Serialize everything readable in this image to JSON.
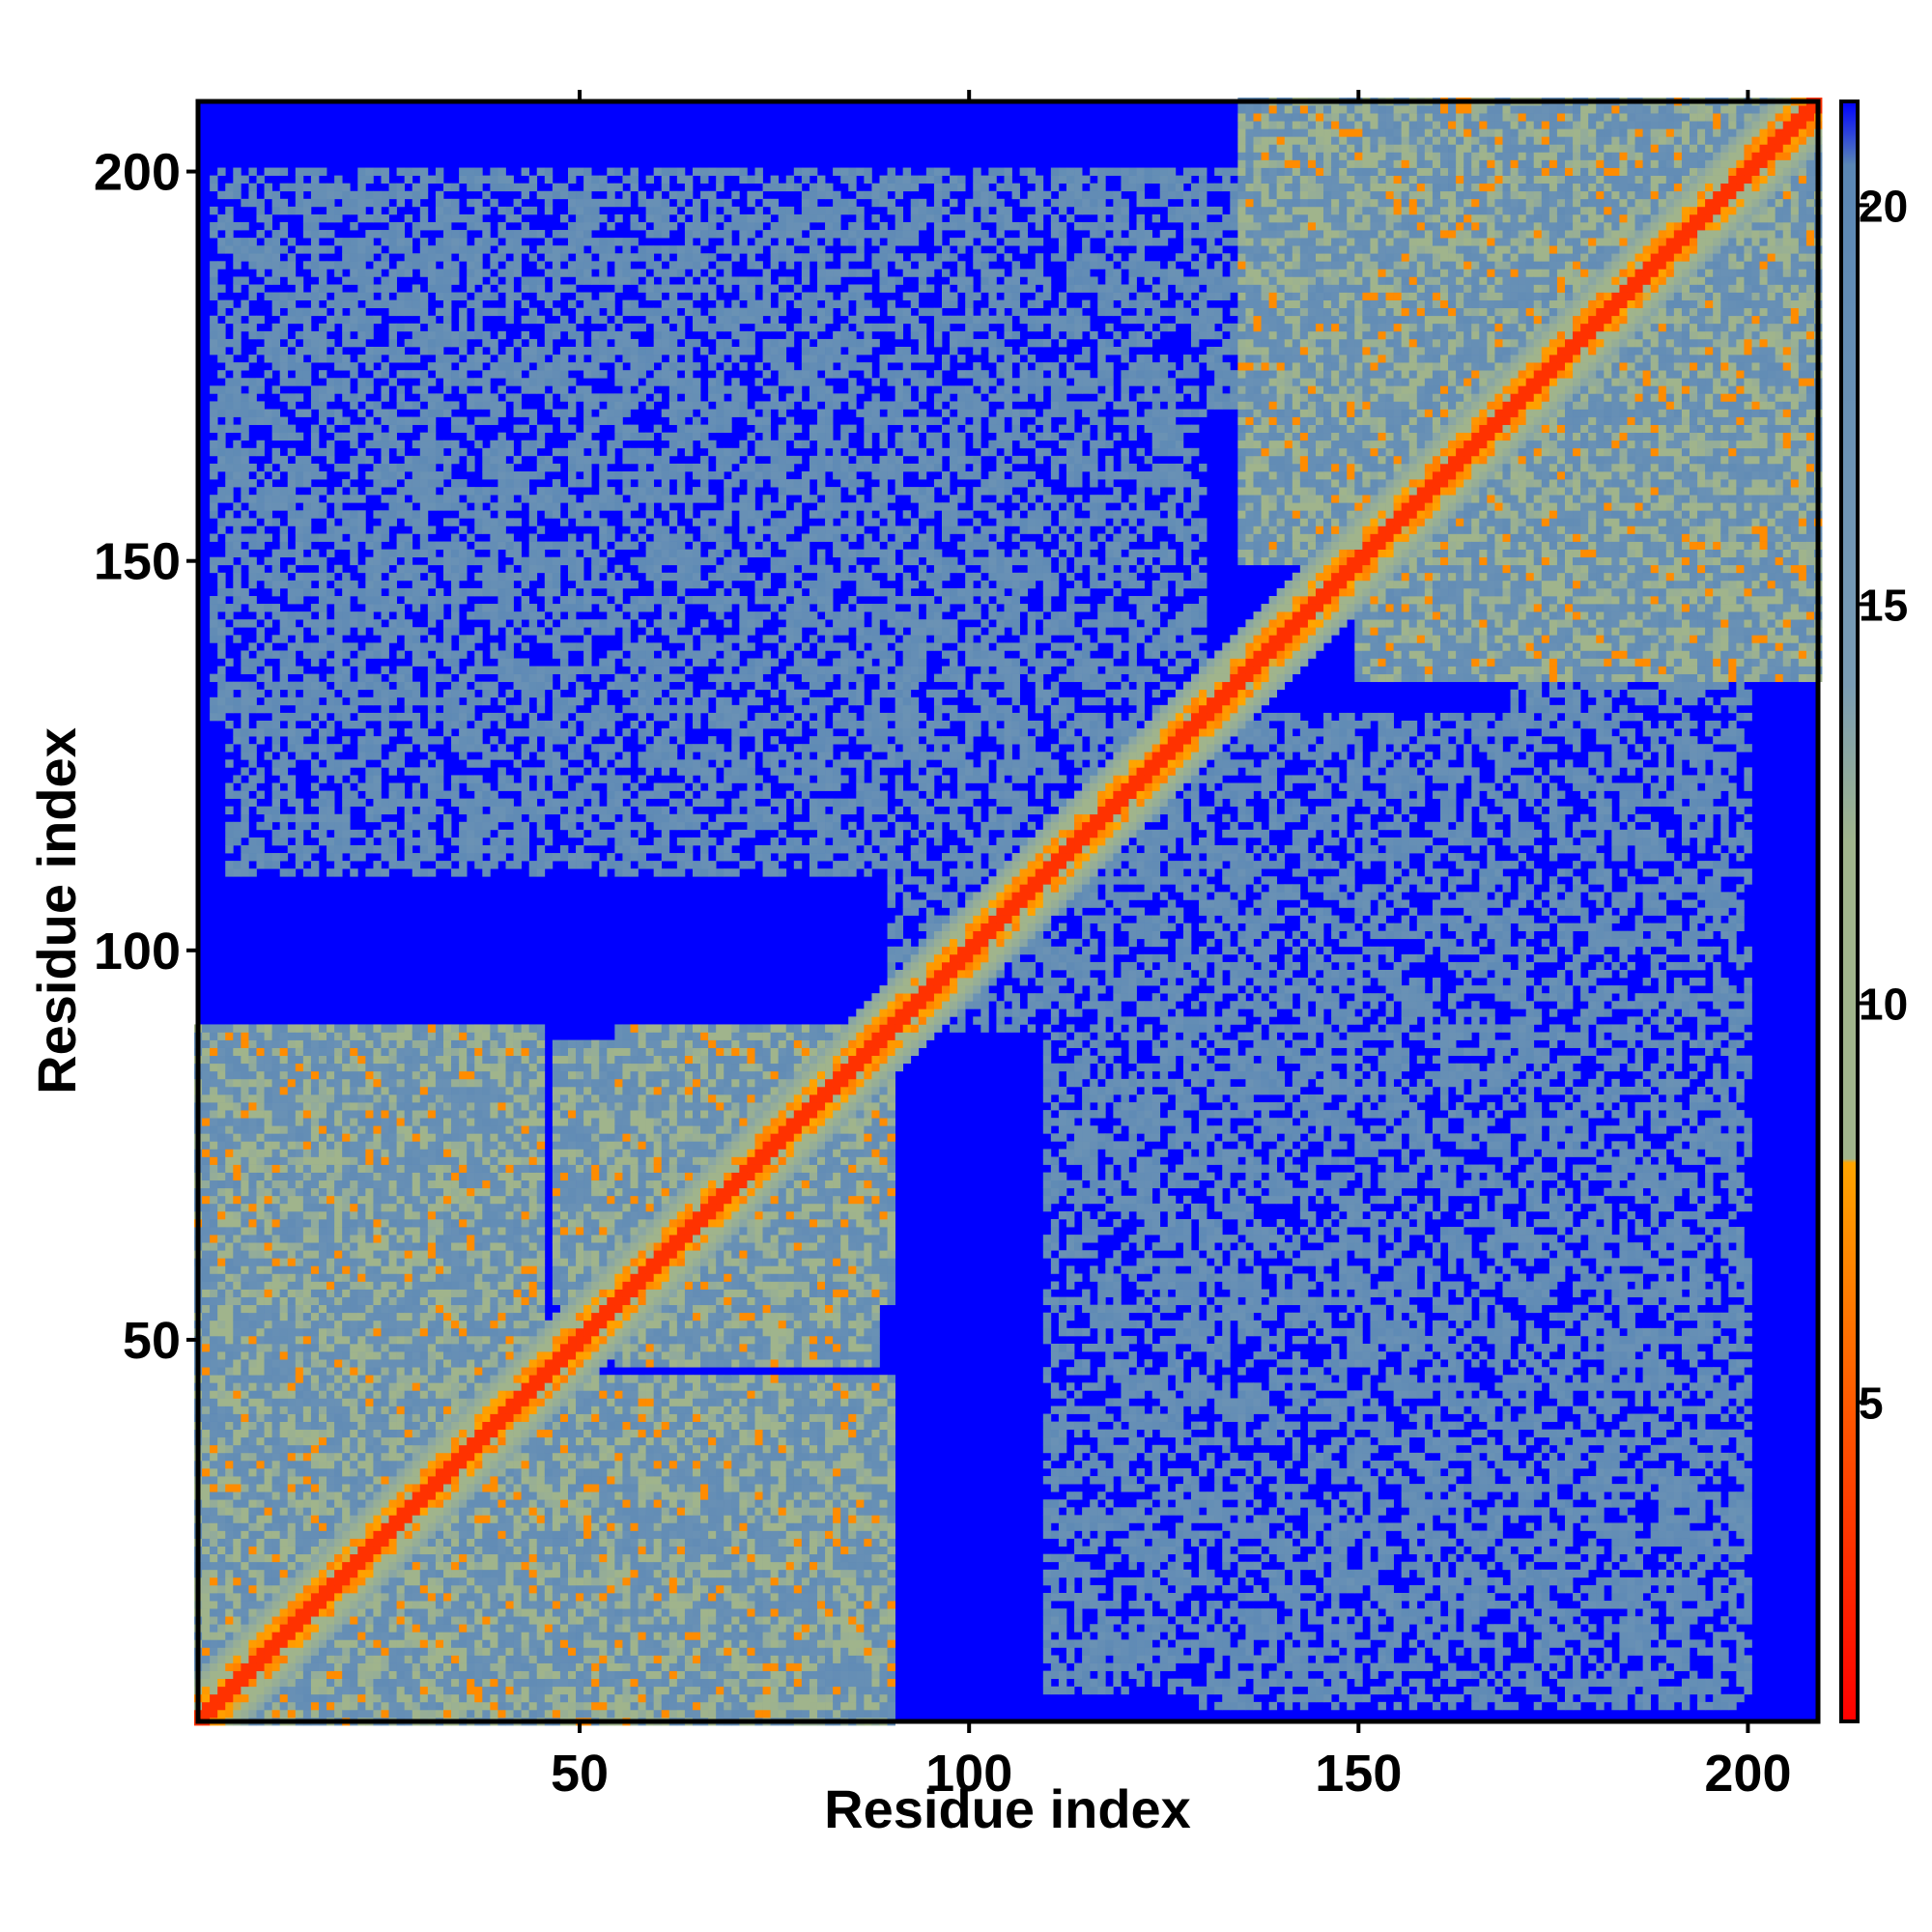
{
  "chart_data": {
    "type": "heatmap",
    "title": "",
    "xlabel": "Residue index",
    "ylabel": "Residue index",
    "xlim": [
      1,
      209
    ],
    "ylim": [
      1,
      209
    ],
    "x_ticks": [
      50,
      100,
      150,
      200
    ],
    "y_ticks": [
      50,
      100,
      150,
      200
    ],
    "colorbar": {
      "range": [
        1,
        21.3
      ],
      "ticks": [
        5,
        10,
        15,
        20
      ],
      "stops": [
        {
          "value": 1,
          "color": "#ff0000"
        },
        {
          "value": 5,
          "color": "#ff5a00"
        },
        {
          "value": 8,
          "color": "#ffa500"
        },
        {
          "value": 8.05,
          "color": "#a0b48c"
        },
        {
          "value": 12,
          "color": "#a0b48c"
        },
        {
          "value": 14,
          "color": "#7a9cb4"
        },
        {
          "value": 20.5,
          "color": "#5a87b5"
        },
        {
          "value": 21.3,
          "color": "#0000ff"
        }
      ]
    },
    "grid": false,
    "legend": "right",
    "background_color": "#0000ff",
    "structure": {
      "diagonal_band": "near-contact distances (red) along residue i = j",
      "contact_regions": [
        {
          "x": [
            1,
            42
          ],
          "y": [
            1,
            90
          ],
          "level": "close"
        },
        {
          "x": [
            45,
            90
          ],
          "y": [
            1,
            45
          ],
          "level": "close"
        },
        {
          "x": [
            47,
            90
          ],
          "y": [
            55,
            88
          ],
          "level": "close"
        },
        {
          "x": [
            150,
            209
          ],
          "y": [
            135,
            209
          ],
          "level": "close"
        },
        {
          "x": [
            3,
            75
          ],
          "y": [
            130,
            200
          ],
          "level": "medium"
        },
        {
          "x": [
            90,
            135
          ],
          "y": [
            90,
            130
          ],
          "level": "medium"
        },
        {
          "x": [
            110,
            170
          ],
          "y": [
            170,
            200
          ],
          "level": "medium"
        },
        {
          "x": [
            110,
            200
          ],
          "y": [
            5,
            130
          ],
          "level": "medium"
        }
      ]
    }
  }
}
